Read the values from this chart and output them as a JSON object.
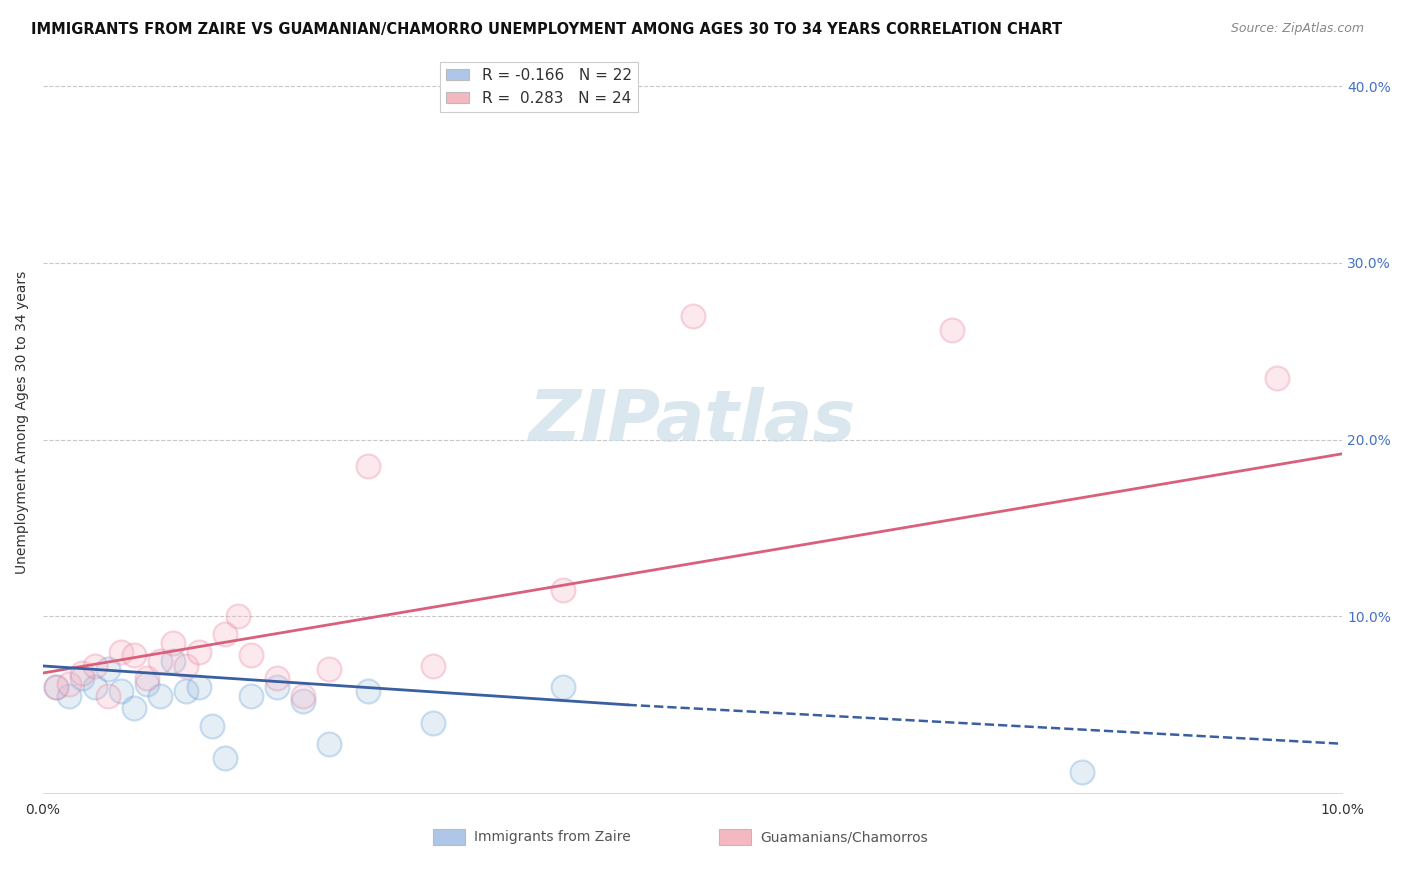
{
  "title": "IMMIGRANTS FROM ZAIRE VS GUAMANIAN/CHAMORRO UNEMPLOYMENT AMONG AGES 30 TO 34 YEARS CORRELATION CHART",
  "source": "Source: ZipAtlas.com",
  "ylabel": "Unemployment Among Ages 30 to 34 years",
  "xlim": [
    0.0,
    0.1
  ],
  "ylim": [
    0.0,
    0.42
  ],
  "yticks_right": [
    0.0,
    0.1,
    0.2,
    0.3,
    0.4
  ],
  "ytick_right_labels": [
    "",
    "10.0%",
    "20.0%",
    "30.0%",
    "40.0%"
  ],
  "legend_entries": [
    {
      "label_r": "R = -0.166",
      "label_n": "N = 22",
      "color": "#aec6e8"
    },
    {
      "label_r": "R =  0.283",
      "label_n": "N = 24",
      "color": "#f4b8c1"
    }
  ],
  "blue_scatter_x": [
    0.001,
    0.002,
    0.003,
    0.004,
    0.005,
    0.006,
    0.007,
    0.008,
    0.009,
    0.01,
    0.011,
    0.012,
    0.013,
    0.014,
    0.016,
    0.018,
    0.02,
    0.022,
    0.025,
    0.03,
    0.04,
    0.08
  ],
  "blue_scatter_y": [
    0.06,
    0.055,
    0.065,
    0.06,
    0.07,
    0.058,
    0.048,
    0.062,
    0.055,
    0.075,
    0.058,
    0.06,
    0.038,
    0.02,
    0.055,
    0.06,
    0.052,
    0.028,
    0.058,
    0.04,
    0.06,
    0.012
  ],
  "pink_scatter_x": [
    0.001,
    0.002,
    0.003,
    0.004,
    0.005,
    0.006,
    0.007,
    0.008,
    0.009,
    0.01,
    0.011,
    0.012,
    0.014,
    0.015,
    0.016,
    0.018,
    0.02,
    0.022,
    0.025,
    0.03,
    0.04,
    0.05,
    0.07,
    0.095
  ],
  "pink_scatter_y": [
    0.06,
    0.062,
    0.068,
    0.072,
    0.055,
    0.08,
    0.078,
    0.065,
    0.075,
    0.085,
    0.072,
    0.08,
    0.09,
    0.1,
    0.078,
    0.065,
    0.055,
    0.07,
    0.185,
    0.072,
    0.115,
    0.27,
    0.262,
    0.235
  ],
  "blue_line_x": [
    0.0,
    0.045
  ],
  "blue_line_y": [
    0.072,
    0.05
  ],
  "blue_dash_line_x": [
    0.045,
    0.1
  ],
  "blue_dash_line_y": [
    0.05,
    0.028
  ],
  "pink_line_x": [
    0.0,
    0.1
  ],
  "pink_line_y": [
    0.068,
    0.192
  ],
  "scatter_size": 300,
  "scatter_alpha": 0.3,
  "scatter_linewidth": 1.5,
  "blue_color": "#aac4e0",
  "blue_edge_color": "#5b9bd5",
  "pink_color": "#f4b8c8",
  "pink_edge_color": "#e87a9a",
  "blue_line_color": "#3a5fa0",
  "pink_line_color": "#d95f7a",
  "grid_color": "#c8c8c8",
  "grid_style": "--",
  "bg_color": "#ffffff",
  "title_fontsize": 10.5,
  "source_fontsize": 9,
  "axis_label_fontsize": 10,
  "tick_fontsize": 10,
  "legend_fontsize": 11,
  "watermark_text": "ZIPatlas",
  "watermark_color": "#ccdde8",
  "watermark_fontsize": 52,
  "right_axis_color": "#4472c4",
  "bottom_legend_blue_label": "Immigrants from Zaire",
  "bottom_legend_pink_label": "Guamanians/Chamorros"
}
